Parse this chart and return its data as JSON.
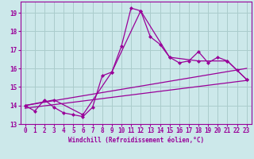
{
  "xlabel": "Windchill (Refroidissement éolien,°C)",
  "bg_color": "#cce8ea",
  "line_color": "#990099",
  "grid_color": "#aacccc",
  "xlim": [
    -0.5,
    23.5
  ],
  "ylim": [
    13.0,
    19.6
  ],
  "yticks": [
    13,
    14,
    15,
    16,
    17,
    18,
    19
  ],
  "xticks": [
    0,
    1,
    2,
    3,
    4,
    5,
    6,
    7,
    8,
    9,
    10,
    11,
    12,
    13,
    14,
    15,
    16,
    17,
    18,
    19,
    20,
    21,
    22,
    23
  ],
  "series1": {
    "x": [
      0,
      1,
      2,
      3,
      4,
      5,
      6,
      7,
      8,
      9,
      10,
      11,
      12,
      13,
      14,
      15,
      16,
      17,
      18,
      19,
      20,
      21,
      22,
      23
    ],
    "y": [
      14.0,
      13.7,
      14.3,
      13.9,
      13.6,
      13.5,
      13.4,
      13.9,
      15.6,
      15.8,
      17.2,
      19.25,
      19.1,
      17.7,
      17.3,
      16.6,
      16.3,
      16.4,
      16.9,
      16.3,
      16.6,
      16.4,
      15.9,
      15.4
    ]
  },
  "series2": {
    "x": [
      0,
      3,
      6,
      9,
      12,
      15,
      18,
      21,
      23
    ],
    "y": [
      14.0,
      14.3,
      13.5,
      15.8,
      19.1,
      16.6,
      16.4,
      16.4,
      15.4
    ]
  },
  "series3": {
    "x": [
      0,
      23
    ],
    "y": [
      14.0,
      16.0
    ]
  },
  "series4": {
    "x": [
      0,
      23
    ],
    "y": [
      13.85,
      15.35
    ]
  }
}
